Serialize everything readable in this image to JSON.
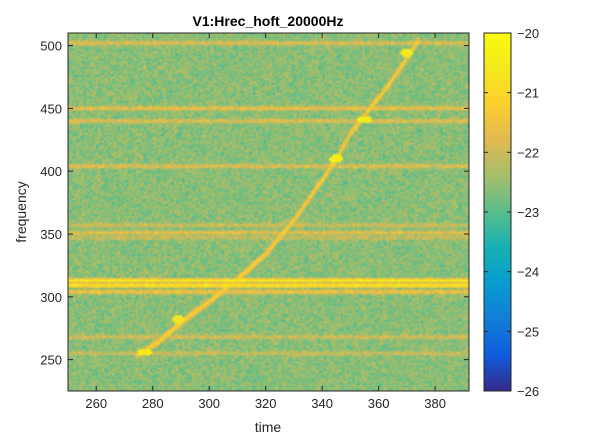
{
  "chart_data": {
    "type": "heatmap",
    "title": "V1:Hrec_hoft_20000Hz",
    "xlabel": "time",
    "ylabel": "frequency",
    "xlim": [
      250,
      392
    ],
    "ylim": [
      225,
      510
    ],
    "xticks": [
      260,
      280,
      300,
      320,
      340,
      360,
      380
    ],
    "yticks": [
      250,
      300,
      350,
      400,
      450,
      500
    ],
    "colorbar": {
      "colormap": "parula",
      "range": [
        -26,
        -20
      ],
      "ticks": [
        -20,
        -21,
        -22,
        -23,
        -24,
        -25,
        -26
      ],
      "tick_labels": [
        "−20",
        "−21",
        "−22",
        "−23",
        "−24",
        "−25",
        "−26"
      ]
    },
    "background_level": -22.6,
    "horizontal_lines": [
      {
        "frequency": 502,
        "level": -21.6
      },
      {
        "frequency": 450,
        "level": -21.4
      },
      {
        "frequency": 440,
        "level": -21.6
      },
      {
        "frequency": 404,
        "level": -21.6
      },
      {
        "frequency": 357,
        "level": -21.9
      },
      {
        "frequency": 351,
        "level": -21.6
      },
      {
        "frequency": 347,
        "level": -21.9
      },
      {
        "frequency": 313,
        "level": -20.3
      },
      {
        "frequency": 309,
        "level": -20.2
      },
      {
        "frequency": 304,
        "level": -21.2
      },
      {
        "frequency": 268,
        "level": -21.8
      },
      {
        "frequency": 255,
        "level": -21.9
      }
    ],
    "chirp_track": {
      "points": [
        {
          "time": 274,
          "frequency": 253
        },
        {
          "time": 282,
          "frequency": 264
        },
        {
          "time": 292,
          "frequency": 283
        },
        {
          "time": 300,
          "frequency": 296
        },
        {
          "time": 310,
          "frequency": 314
        },
        {
          "time": 320,
          "frequency": 334
        },
        {
          "time": 330,
          "frequency": 361
        },
        {
          "time": 340,
          "frequency": 393
        },
        {
          "time": 345,
          "frequency": 410
        },
        {
          "time": 350,
          "frequency": 430
        },
        {
          "time": 356,
          "frequency": 447
        },
        {
          "time": 364,
          "frequency": 470
        },
        {
          "time": 370,
          "frequency": 490
        },
        {
          "time": 374,
          "frequency": 504
        }
      ],
      "level": -21.0
    },
    "hotspots": [
      {
        "time": 277,
        "frequency": 256,
        "level": -20.8
      },
      {
        "time": 289,
        "frequency": 282,
        "level": -21.0
      },
      {
        "time": 345,
        "frequency": 410,
        "level": -20.7
      },
      {
        "time": 355,
        "frequency": 441,
        "level": -20.7
      },
      {
        "time": 370,
        "frequency": 494,
        "level": -20.8
      }
    ]
  }
}
